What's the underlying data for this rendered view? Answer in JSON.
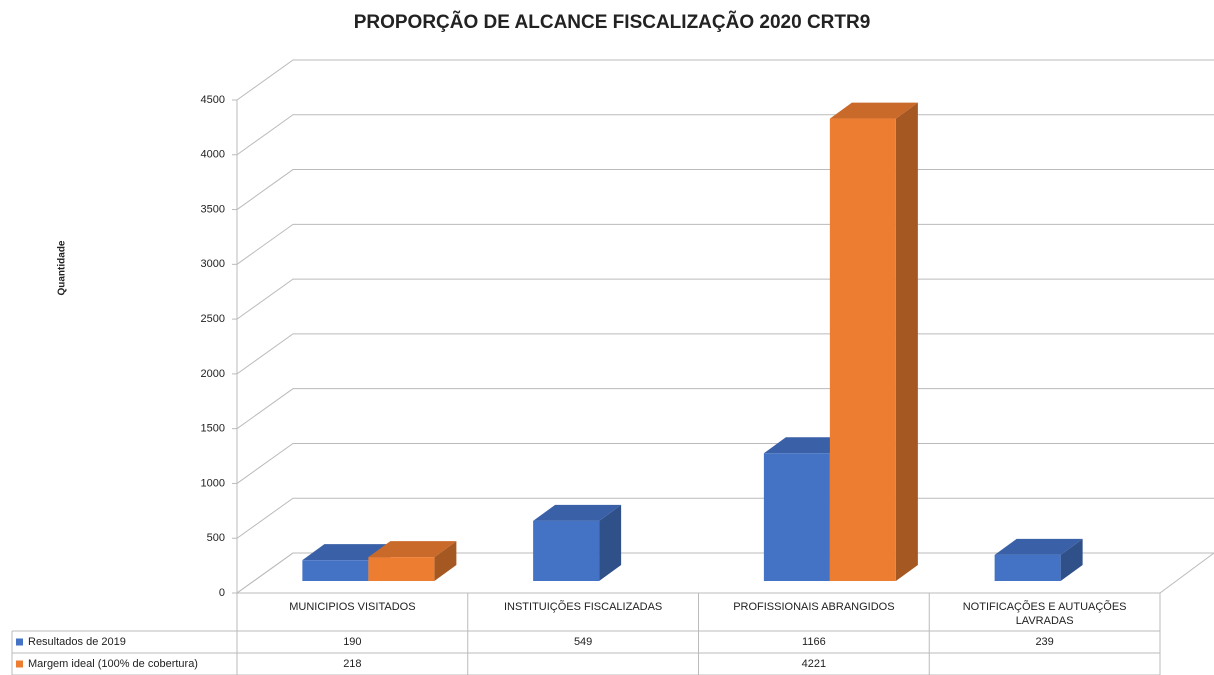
{
  "chart_data": {
    "type": "bar3d",
    "title": "PROPORÇÃO DE ALCANCE FISCALIZAÇÃO 2020 CRTR9",
    "y_label": "Quantidade",
    "categories": [
      "MUNICIPIOS VISITADOS",
      "INSTITUIÇÕES FISCALIZADAS",
      "PROFISSIONAIS ABRANGIDOS",
      "NOTIFICAÇÕES E AUTUAÇÕES LAVRADAS"
    ],
    "series": [
      {
        "name": "Resultados de 2019",
        "color": "#4472c4",
        "values": [
          190,
          549,
          1166,
          239
        ]
      },
      {
        "name": "Margem ideal (100% de cobertura)",
        "color": "#ed7d31",
        "values": [
          218,
          null,
          4221,
          null
        ]
      }
    ],
    "ylim": [
      0,
      4500
    ],
    "yticks": [
      0,
      500,
      1000,
      1500,
      2000,
      2500,
      3000,
      3500,
      4000,
      4500
    ],
    "grid": true,
    "data_table": true
  }
}
